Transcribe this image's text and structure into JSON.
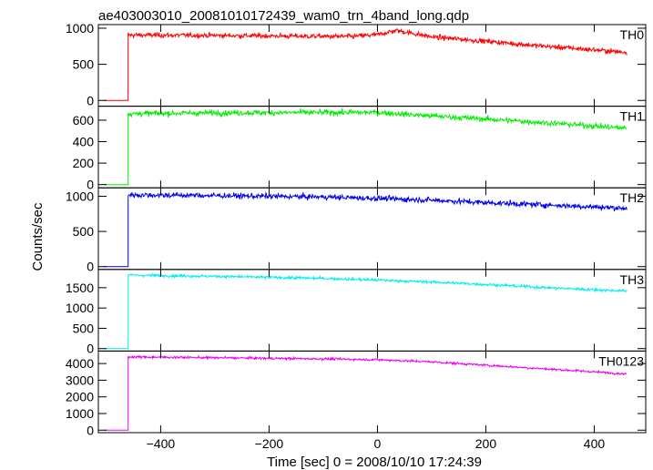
{
  "title": "ae403003010_20081010172439_wam0_trn_4band_long.qdp",
  "ylabel": "Counts/sec",
  "xlabel": "Time [sec] 0 = 2008/10/10 17:24:39",
  "chart_data": [
    {
      "type": "line",
      "name": "TH0",
      "color": "#ff0000",
      "xlim": [
        -515,
        495
      ],
      "ylim": [
        -80,
        1050
      ],
      "yticks": [
        0,
        500,
        1000
      ],
      "xticks": [
        -400,
        -200,
        0,
        200,
        400
      ],
      "background": 0,
      "onset": -460,
      "trend": [
        [
          -460,
          905
        ],
        [
          -300,
          900
        ],
        [
          -150,
          890
        ],
        [
          -50,
          885
        ],
        [
          0,
          910
        ],
        [
          35,
          970
        ],
        [
          100,
          880
        ],
        [
          200,
          820
        ],
        [
          300,
          755
        ],
        [
          400,
          700
        ],
        [
          460,
          665
        ]
      ],
      "noise": 40
    },
    {
      "type": "line",
      "name": "TH1",
      "color": "#00ee00",
      "xlim": [
        -515,
        495
      ],
      "ylim": [
        -30,
        730
      ],
      "yticks": [
        0,
        200,
        400,
        600
      ],
      "xticks": [
        -400,
        -200,
        0,
        200,
        400
      ],
      "background": 0,
      "onset": -460,
      "trend": [
        [
          -460,
          660
        ],
        [
          -300,
          668
        ],
        [
          -100,
          672
        ],
        [
          0,
          672
        ],
        [
          100,
          640
        ],
        [
          200,
          610
        ],
        [
          300,
          580
        ],
        [
          400,
          545
        ],
        [
          460,
          525
        ]
      ],
      "noise": 30
    },
    {
      "type": "line",
      "name": "TH2",
      "color": "#0000ee",
      "xlim": [
        -515,
        495
      ],
      "ylim": [
        -40,
        1120
      ],
      "yticks": [
        0,
        500,
        1000
      ],
      "xticks": [
        -400,
        -200,
        0,
        200,
        400
      ],
      "background": 0,
      "onset": -460,
      "trend": [
        [
          -460,
          1020
        ],
        [
          -300,
          1010
        ],
        [
          -100,
          990
        ],
        [
          0,
          970
        ],
        [
          100,
          945
        ],
        [
          200,
          910
        ],
        [
          300,
          880
        ],
        [
          400,
          850
        ],
        [
          460,
          830
        ]
      ],
      "noise": 45
    },
    {
      "type": "line",
      "name": "TH3",
      "color": "#00eeee",
      "xlim": [
        -515,
        495
      ],
      "ylim": [
        -60,
        1950
      ],
      "yticks": [
        0,
        500,
        1000,
        1500
      ],
      "xticks": [
        -400,
        -200,
        0,
        200,
        400
      ],
      "background": 0,
      "onset": -460,
      "trend": [
        [
          -460,
          1810
        ],
        [
          -300,
          1780
        ],
        [
          -100,
          1730
        ],
        [
          0,
          1690
        ],
        [
          100,
          1640
        ],
        [
          200,
          1580
        ],
        [
          300,
          1510
        ],
        [
          400,
          1450
        ],
        [
          460,
          1420
        ]
      ],
      "noise": 40
    },
    {
      "type": "line",
      "name": "TH0123",
      "color": "#ee00ee",
      "xlim": [
        -515,
        495
      ],
      "ylim": [
        -150,
        4750
      ],
      "yticks": [
        0,
        1000,
        2000,
        3000,
        4000
      ],
      "xticks": [
        -400,
        -200,
        0,
        200,
        400
      ],
      "background": 0,
      "onset": -460,
      "trend": [
        [
          -460,
          4400
        ],
        [
          -300,
          4350
        ],
        [
          -100,
          4280
        ],
        [
          0,
          4230
        ],
        [
          100,
          4100
        ],
        [
          200,
          3900
        ],
        [
          300,
          3700
        ],
        [
          400,
          3500
        ],
        [
          460,
          3380
        ]
      ],
      "noise": 80
    }
  ]
}
